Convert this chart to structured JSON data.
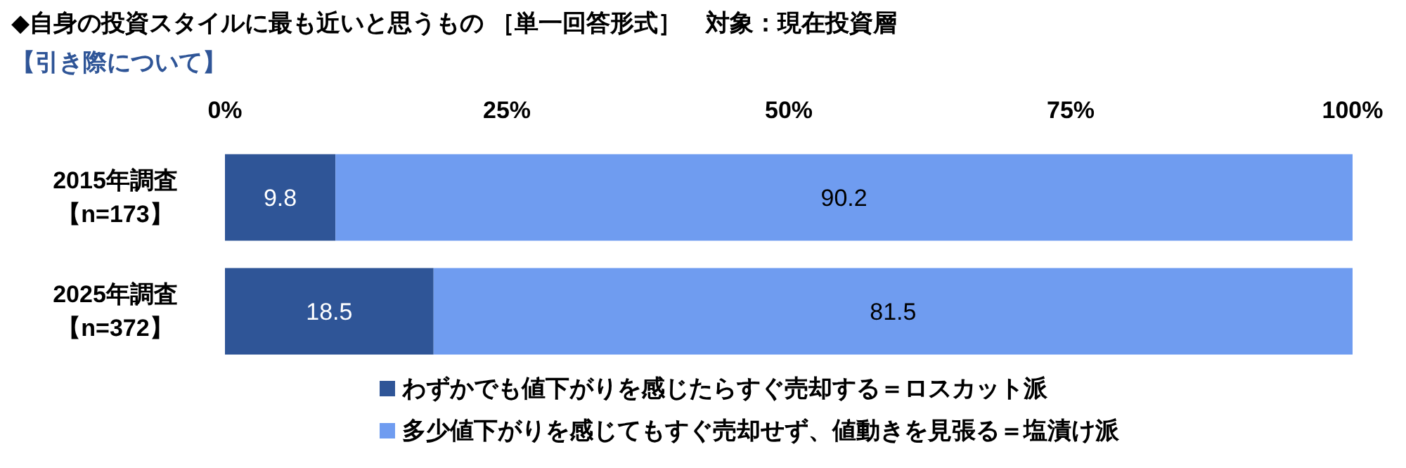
{
  "chart_data": {
    "type": "bar",
    "orientation": "horizontal",
    "stacked": true,
    "title": "◆自身の投資スタイルに最も近いと思うもの ［単一回答形式］　対象：現在投資層",
    "subtitle": "【引き際について】",
    "categories": [
      "2015年調査【n=173】",
      "2025年調査【n=372】"
    ],
    "series": [
      {
        "name": "わずかでも値下がりを感じたらすぐ売却する＝ロスカット派",
        "color": "#2f5597",
        "values": [
          9.8,
          18.5
        ]
      },
      {
        "name": "多少値下がりを感じてもすぐ売却せず、値動きを見張る＝塩漬け派",
        "color": "#6f9cf0",
        "values": [
          90.2,
          81.5
        ]
      }
    ],
    "xlim": [
      0,
      100
    ],
    "xticks": [
      {
        "value": 0,
        "label": "0%"
      },
      {
        "value": 25,
        "label": "25%"
      },
      {
        "value": 50,
        "label": "50%"
      },
      {
        "value": 75,
        "label": "75%"
      },
      {
        "value": 100,
        "label": "100%"
      }
    ],
    "data_labels": true,
    "legend": "bottom"
  }
}
